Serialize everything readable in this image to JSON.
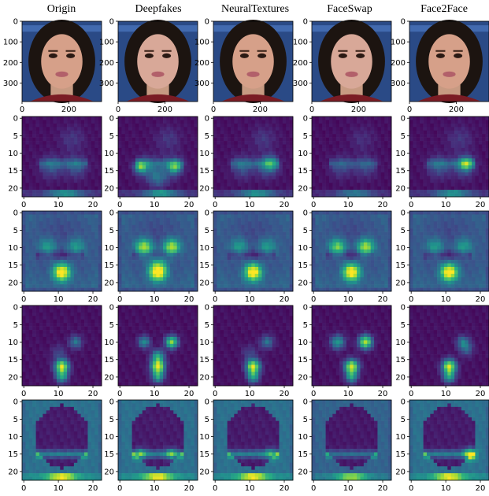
{
  "figure": {
    "columns": [
      "Origin",
      "Deepfakes",
      "NeuralTextures",
      "FaceSwap",
      "Face2Face"
    ],
    "face_row": {
      "x_ticks": [
        "0",
        "200"
      ],
      "y_ticks": [
        "0",
        "100",
        "200",
        "300"
      ]
    },
    "heatmap_rows": {
      "x_ticks": [
        "0",
        "10",
        "20"
      ],
      "y_ticks": [
        "0",
        "5",
        "10",
        "15",
        "20"
      ]
    },
    "colormap": "viridis",
    "image_alt": "face photograph"
  }
}
